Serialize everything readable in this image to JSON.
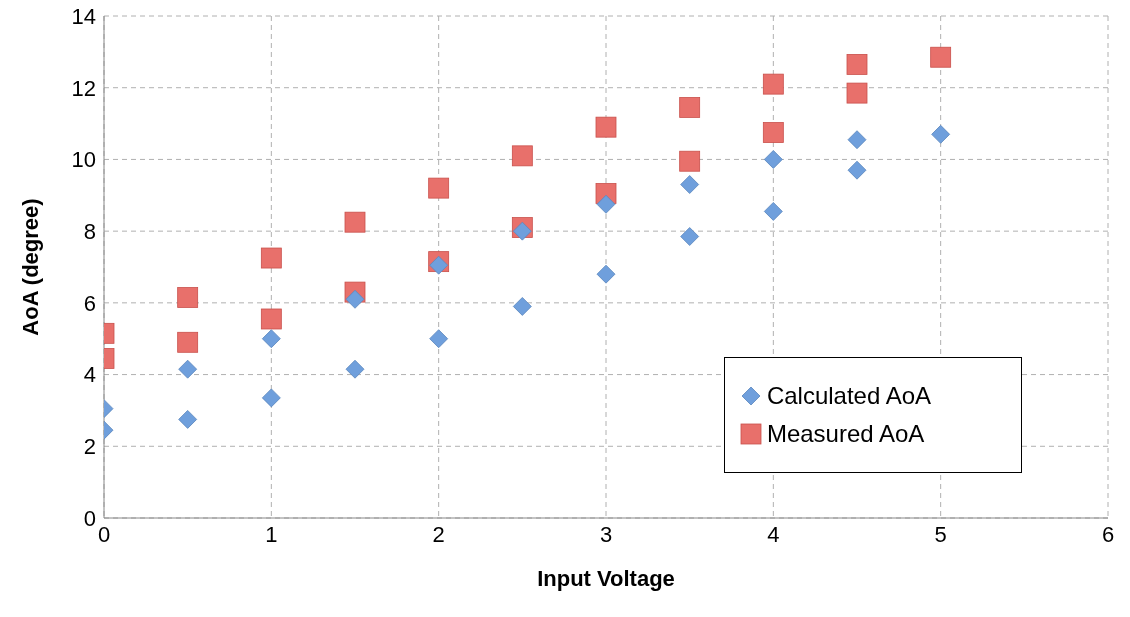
{
  "chart_data": {
    "type": "scatter",
    "xlabel": "Input Voltage",
    "ylabel": "AoA (degree)",
    "xlim": [
      0,
      6
    ],
    "xticks": [
      0,
      1,
      2,
      3,
      4,
      5,
      6
    ],
    "ylim": [
      0,
      14
    ],
    "yticks": [
      0,
      2,
      4,
      6,
      8,
      10,
      12,
      14
    ],
    "grid": true,
    "legend": "bottom right",
    "series": [
      {
        "name": "Calculated AoA",
        "color": "#6f9fdc",
        "marker": "diamond",
        "x": [
          0,
          0,
          0.5,
          0.5,
          1,
          1,
          1.5,
          1.5,
          2,
          2,
          2.5,
          2.5,
          3,
          3,
          3.5,
          3.5,
          4,
          4,
          4.5,
          4.5,
          5
        ],
        "values": [
          3.05,
          2.45,
          4.15,
          2.75,
          5.0,
          3.35,
          6.1,
          4.15,
          7.05,
          5.0,
          8.0,
          5.9,
          8.75,
          6.8,
          9.3,
          7.85,
          10.0,
          8.55,
          10.55,
          9.7,
          10.7
        ]
      },
      {
        "name": "Measured AoA",
        "color": "#e8706b",
        "marker": "square",
        "x": [
          0,
          0,
          0.5,
          0.5,
          1,
          1,
          1.5,
          1.5,
          2,
          2,
          2.5,
          2.5,
          3,
          3,
          3.5,
          3.5,
          4,
          4,
          4.5,
          4.5,
          5
        ],
        "values": [
          5.15,
          4.45,
          6.15,
          4.9,
          7.25,
          5.55,
          8.25,
          6.3,
          9.2,
          7.15,
          10.1,
          8.1,
          10.9,
          9.05,
          11.45,
          9.95,
          12.1,
          10.75,
          12.65,
          11.85,
          12.85
        ]
      }
    ]
  }
}
